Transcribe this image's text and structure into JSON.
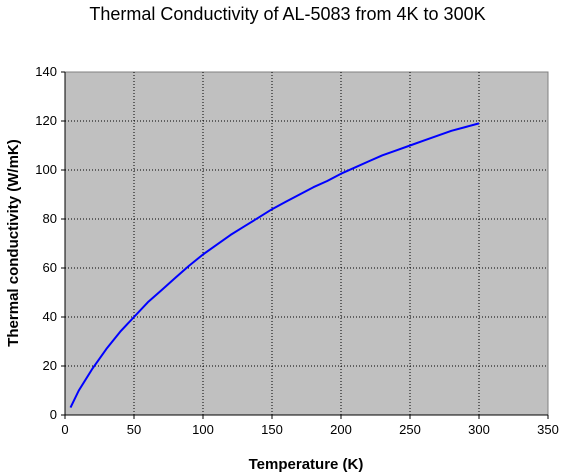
{
  "chart_data": {
    "type": "line",
    "title": "Thermal Conductivity of AL-5083 from 4K to 300K",
    "xlabel": "Temperature (K)",
    "ylabel": "Thermal conductivity (W/mK)",
    "xlim": [
      0,
      350
    ],
    "ylim": [
      0,
      140
    ],
    "xticks": [
      0,
      50,
      100,
      150,
      200,
      250,
      300,
      350
    ],
    "yticks": [
      0,
      20,
      40,
      60,
      80,
      100,
      120,
      140
    ],
    "grid": true,
    "legend": "none",
    "colors": {
      "plot_background": "#c0c0c0",
      "line": "#0000ff",
      "grid": "#000000"
    },
    "series": [
      {
        "x": [
          4,
          10,
          20,
          30,
          40,
          50,
          60,
          70,
          80,
          90,
          100,
          110,
          120,
          130,
          140,
          150,
          160,
          170,
          180,
          190,
          200,
          210,
          220,
          230,
          240,
          250,
          260,
          270,
          280,
          290,
          300
        ],
        "y": [
          3,
          10,
          19,
          27,
          34,
          40,
          46,
          51,
          56,
          61,
          65.5,
          69.5,
          73.5,
          77,
          80.5,
          84,
          87,
          90,
          93,
          95.5,
          98.5,
          101,
          103.5,
          106,
          108,
          110,
          112,
          114,
          116,
          117.5,
          119
        ]
      }
    ]
  }
}
